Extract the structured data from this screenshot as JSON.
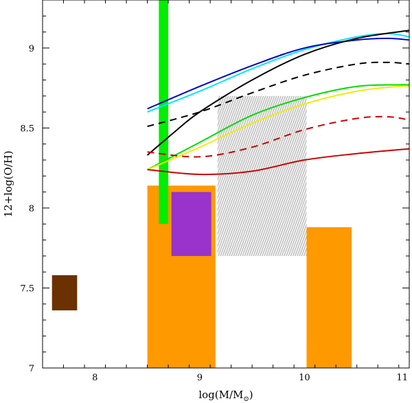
{
  "chart_data": {
    "type": "line",
    "title": "",
    "xlabel": "log(M/M",
    "xlabel_sub": "⊙",
    "xlabel_close": ")",
    "ylabel": "12+log(O/H)",
    "xlim": [
      7.5,
      11
    ],
    "ylim": [
      7,
      9.3
    ],
    "x_ticks": [
      8,
      9,
      10,
      11
    ],
    "x_tick_labels": [
      "8",
      "9",
      "10",
      "11"
    ],
    "y_ticks": [
      7,
      7.5,
      8,
      8.5,
      9
    ],
    "y_tick_labels": [
      "7",
      "7.5",
      "8",
      "8.5",
      "9"
    ],
    "x_minor_step": 0.2,
    "y_minor_step": 0.1,
    "grid": false,
    "rectangles": [
      {
        "name": "brown-box",
        "x0": 7.59,
        "x1": 7.83,
        "y0": 7.36,
        "y1": 7.58,
        "color": "#6b3100",
        "pattern": "solid"
      },
      {
        "name": "orange-box-left",
        "x0": 8.5,
        "x1": 9.15,
        "y0": 7.0,
        "y1": 8.14,
        "color": "#ff9900",
        "pattern": "solid"
      },
      {
        "name": "orange-box-right",
        "x0": 10.02,
        "x1": 10.45,
        "y0": 7.0,
        "y1": 7.88,
        "color": "#ff9900",
        "pattern": "solid"
      },
      {
        "name": "grey-hatched-box",
        "x0": 9.17,
        "x1": 10.02,
        "y0": 7.7,
        "y1": 8.7,
        "color": "#9a9a9a",
        "pattern": "hatch"
      },
      {
        "name": "purple-box",
        "x0": 8.73,
        "x1": 9.11,
        "y0": 7.7,
        "y1": 8.1,
        "color": "#9933cc",
        "pattern": "solid"
      },
      {
        "name": "green-bar",
        "x0": 8.61,
        "x1": 8.7,
        "y0": 7.9,
        "y1": 9.3,
        "color": "#00ee00",
        "pattern": "solid"
      }
    ],
    "series": [
      {
        "name": "cyan",
        "color": "#00e5ff",
        "dash": "solid",
        "x": [
          8.5,
          9.0,
          9.5,
          10.0,
          10.5,
          10.8,
          11.0
        ],
        "y": [
          8.6,
          8.73,
          8.87,
          8.99,
          9.07,
          9.09,
          9.07
        ]
      },
      {
        "name": "blue",
        "color": "#0000cc",
        "dash": "solid",
        "x": [
          8.5,
          9.0,
          9.5,
          10.0,
          10.5,
          10.8,
          11.0
        ],
        "y": [
          8.62,
          8.76,
          8.89,
          9.0,
          9.05,
          9.06,
          9.05
        ]
      },
      {
        "name": "black-solid",
        "color": "#000000",
        "dash": "solid",
        "x": [
          8.5,
          8.75,
          9.0,
          9.5,
          10.0,
          10.5,
          11.0
        ],
        "y": [
          8.33,
          8.47,
          8.6,
          8.8,
          8.96,
          9.06,
          9.11
        ]
      },
      {
        "name": "black-dashed",
        "color": "#000000",
        "dash": "dashed",
        "x": [
          8.5,
          9.0,
          9.5,
          10.0,
          10.5,
          10.8,
          11.0
        ],
        "y": [
          8.51,
          8.6,
          8.72,
          8.83,
          8.9,
          8.91,
          8.9
        ]
      },
      {
        "name": "green",
        "color": "#00dd00",
        "dash": "solid",
        "x": [
          8.5,
          9.0,
          9.5,
          10.0,
          10.5,
          10.9,
          11.0
        ],
        "y": [
          8.24,
          8.41,
          8.58,
          8.69,
          8.76,
          8.77,
          8.77
        ]
      },
      {
        "name": "yellow",
        "color": "#eeee00",
        "dash": "solid",
        "x": [
          8.5,
          9.0,
          9.5,
          10.0,
          10.5,
          10.9,
          11.0
        ],
        "y": [
          8.24,
          8.38,
          8.53,
          8.65,
          8.73,
          8.76,
          8.76
        ]
      },
      {
        "name": "red-dashed",
        "color": "#cc0000",
        "dash": "dashed",
        "x": [
          8.5,
          9.0,
          9.5,
          10.0,
          10.5,
          10.8,
          11.0
        ],
        "y": [
          8.35,
          8.32,
          8.38,
          8.49,
          8.56,
          8.57,
          8.55
        ]
      },
      {
        "name": "red-solid",
        "color": "#cc0000",
        "dash": "solid",
        "x": [
          8.5,
          9.0,
          9.5,
          10.0,
          10.5,
          11.0
        ],
        "y": [
          8.24,
          8.21,
          8.23,
          8.3,
          8.34,
          8.37
        ]
      }
    ]
  }
}
